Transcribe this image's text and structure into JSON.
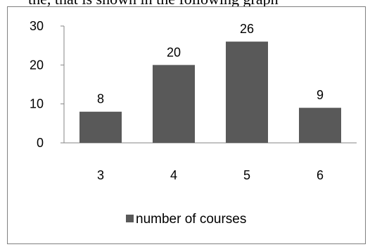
{
  "header_text": "the, that is shown in the following graph",
  "chart_data": {
    "type": "bar",
    "categories": [
      "3",
      "4",
      "5",
      "6"
    ],
    "series": [
      {
        "name": "number of courses",
        "values": [
          8,
          20,
          26,
          9
        ],
        "color": "#595959"
      }
    ],
    "data_labels": [
      "8",
      "20",
      "26",
      "9"
    ],
    "ylim": [
      0,
      30
    ],
    "yticks": [
      0,
      10,
      20,
      30
    ],
    "ytick_labels": [
      "0",
      "10",
      "20",
      "30"
    ],
    "grid": false,
    "legend": "bottom"
  }
}
